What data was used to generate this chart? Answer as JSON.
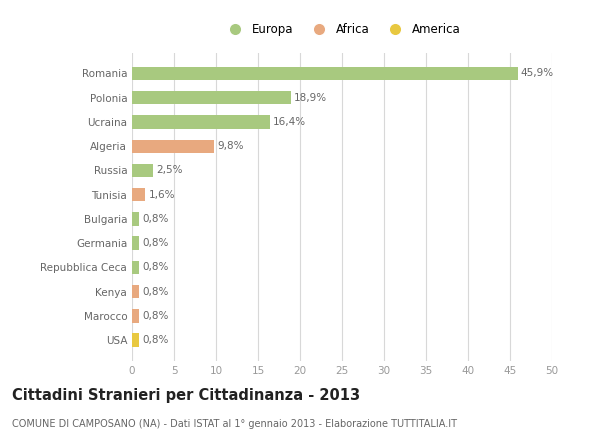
{
  "countries": [
    "Romania",
    "Polonia",
    "Ucraina",
    "Algeria",
    "Russia",
    "Tunisia",
    "Bulgaria",
    "Germania",
    "Repubblica Ceca",
    "Kenya",
    "Marocco",
    "USA"
  ],
  "values": [
    45.9,
    18.9,
    16.4,
    9.8,
    2.5,
    1.6,
    0.8,
    0.8,
    0.8,
    0.8,
    0.8,
    0.8
  ],
  "labels": [
    "45,9%",
    "18,9%",
    "16,4%",
    "9,8%",
    "2,5%",
    "1,6%",
    "0,8%",
    "0,8%",
    "0,8%",
    "0,8%",
    "0,8%",
    "0,8%"
  ],
  "categories": [
    "Europa",
    "Africa",
    "America"
  ],
  "bar_colors": [
    "#a8c97f",
    "#a8c97f",
    "#a8c97f",
    "#e8a97f",
    "#a8c97f",
    "#e8a97f",
    "#a8c97f",
    "#a8c97f",
    "#a8c97f",
    "#e8a97f",
    "#e8a97f",
    "#e8c840"
  ],
  "legend_colors": [
    "#a8c97f",
    "#e8a97f",
    "#e8c840"
  ],
  "xlim": [
    0,
    50
  ],
  "xticks": [
    0,
    5,
    10,
    15,
    20,
    25,
    30,
    35,
    40,
    45,
    50
  ],
  "title": "Cittadini Stranieri per Cittadinanza - 2013",
  "subtitle": "COMUNE DI CAMPOSANO (NA) - Dati ISTAT al 1° gennaio 2013 - Elaborazione TUTTITALIA.IT",
  "background_color": "#ffffff",
  "grid_color": "#d8d8d8",
  "bar_height": 0.55,
  "title_fontsize": 10.5,
  "subtitle_fontsize": 7,
  "tick_fontsize": 7.5,
  "label_fontsize": 7.5,
  "legend_fontsize": 8.5
}
